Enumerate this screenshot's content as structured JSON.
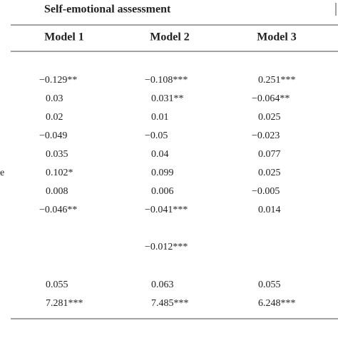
{
  "header": {
    "title": "Self-emotional assessment"
  },
  "table": {
    "columns": [
      "Model 1",
      "Model 2",
      "Model 3"
    ],
    "row_label_fragment": "e",
    "rows": [
      [
        "−0.129**",
        "−0.108***",
        "0.251***"
      ],
      [
        "0.03",
        "0.031**",
        "−0.064**"
      ],
      [
        "0.02",
        "0.01",
        "0.025"
      ],
      [
        "−0.049",
        "−0.05",
        "−0.023"
      ],
      [
        "0.035",
        "0.04",
        "0.077"
      ],
      [
        "0.102*",
        "0.099",
        "0.025"
      ],
      [
        "0.008",
        "0.006",
        "−0.005"
      ],
      [
        "−0.046**",
        "−0.041***",
        "0.014"
      ],
      [
        null,
        "−0.012***",
        null
      ],
      [
        "0.055",
        "0.063",
        "0.055"
      ],
      [
        "7.281***",
        "7.485***",
        "6.248***"
      ]
    ]
  }
}
